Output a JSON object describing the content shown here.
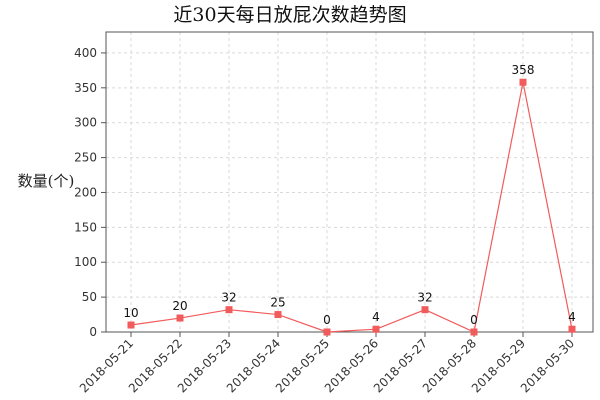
{
  "chart_data": {
    "type": "line",
    "title": "近30天每日放屁次数趋势图",
    "xlabel": "",
    "ylabel": "数量(个)",
    "categories": [
      "2018-05-21",
      "2018-05-22",
      "2018-05-23",
      "2018-05-24",
      "2018-05-25",
      "2018-05-26",
      "2018-05-27",
      "2018-05-28",
      "2018-05-29",
      "2018-05-30"
    ],
    "values": [
      10,
      20,
      32,
      25,
      0,
      4,
      32,
      0,
      358,
      4
    ],
    "ylim": [
      0,
      430
    ],
    "yticks": [
      0,
      50,
      100,
      150,
      200,
      250,
      300,
      350,
      400
    ],
    "grid": true,
    "legend": "none",
    "series_color": "#f25b5b",
    "marker": "square"
  }
}
